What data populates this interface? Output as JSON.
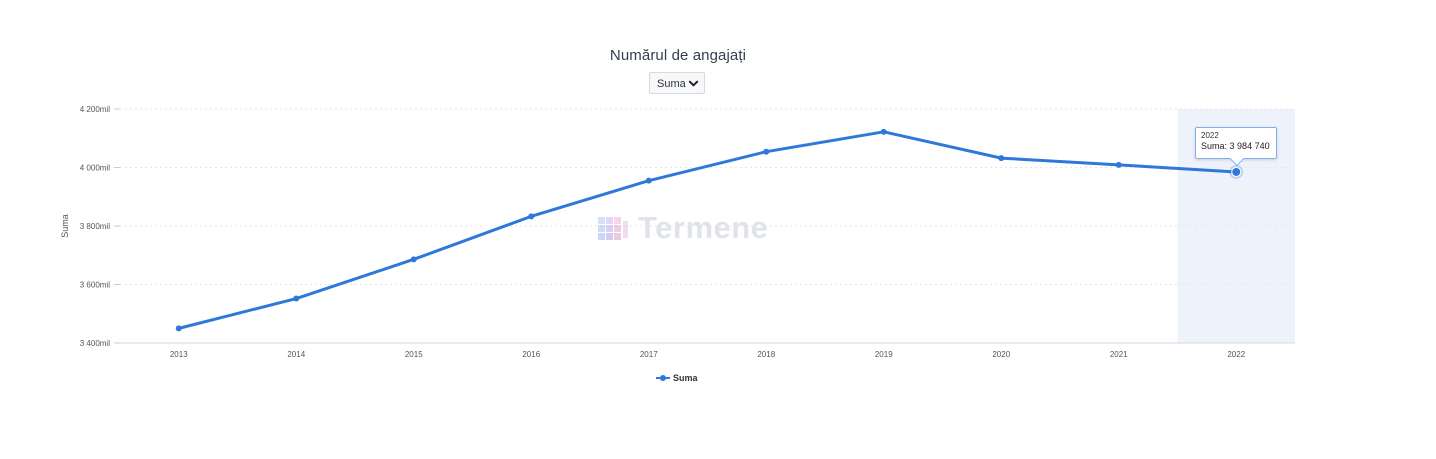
{
  "header": {
    "title": "Numărul de angajați"
  },
  "select": {
    "value": "Suma"
  },
  "watermark": {
    "text": "Termene"
  },
  "tooltip": {
    "year": "2022",
    "series": "Suma",
    "value": "3 984 740"
  },
  "legend": {
    "label": "Suma"
  },
  "colors": {
    "line": "#2e78d9",
    "highlight": "#eef2fb",
    "grid": "#e6e6e6"
  },
  "chart_data": {
    "type": "line",
    "title": "Numărul de angajați",
    "xlabel": "",
    "ylabel": "Suma",
    "categories": [
      "2013",
      "2014",
      "2015",
      "2016",
      "2017",
      "2018",
      "2019",
      "2020",
      "2021",
      "2022"
    ],
    "series": [
      {
        "name": "Suma",
        "values": [
          3450000,
          3552000,
          3686000,
          3833000,
          3955000,
          4054000,
          4122000,
          4032000,
          4009000,
          3984740
        ]
      }
    ],
    "ylim": [
      3400000,
      4200000
    ],
    "yticks": [
      {
        "value": 3400000,
        "label": "3 400mil"
      },
      {
        "value": 3600000,
        "label": "3 600mil"
      },
      {
        "value": 3800000,
        "label": "3 800mil"
      },
      {
        "value": 4000000,
        "label": "4 000mil"
      },
      {
        "value": 4200000,
        "label": "4 200mil"
      }
    ],
    "highlighted_category": "2022",
    "grid": true,
    "legend": "bottom-center"
  }
}
